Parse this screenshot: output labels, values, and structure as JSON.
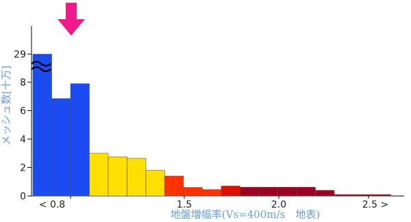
{
  "chart_data": {
    "type": "bar",
    "ylabel": "メッシュ数[十万]",
    "xlabel": "地盤増幅率(Vs=400m/s　地表)",
    "y_ticks": [
      "0",
      "2",
      "4",
      "6",
      "8",
      "29"
    ],
    "x_ticks": [
      "< 0.8",
      "1.5",
      "2.0",
      "2.5 >"
    ],
    "axis_break": true,
    "values": [
      29,
      6.85,
      7.9,
      3.0,
      2.75,
      2.65,
      1.8,
      1.4,
      0.6,
      0.45,
      0.7,
      0.62,
      0.62,
      0.62,
      0.62,
      0.4,
      0.1,
      0.1,
      0.1
    ],
    "bar_colors": [
      "#1a4cf2",
      "#1a4cf2",
      "#1a4cf2",
      "#ffe000",
      "#ffe000",
      "#ffe000",
      "#ffe000",
      "#ff3300",
      "#ff3300",
      "#ff3300",
      "#e01000",
      "#9e0020",
      "#9e0020",
      "#9e0020",
      "#9e0020",
      "#9e0020",
      "#9e0020",
      "#9e0020",
      "#9e0020"
    ],
    "indicator": {
      "type": "down-arrow",
      "color": "#ee1a8c"
    },
    "colors": {
      "axis_label": "#6a9ed8",
      "blue": "#1a4cf2",
      "yellow": "#ffe000",
      "red": "#ff3300",
      "dark_red": "#9e0020",
      "arrow": "#ee1a8c"
    }
  }
}
